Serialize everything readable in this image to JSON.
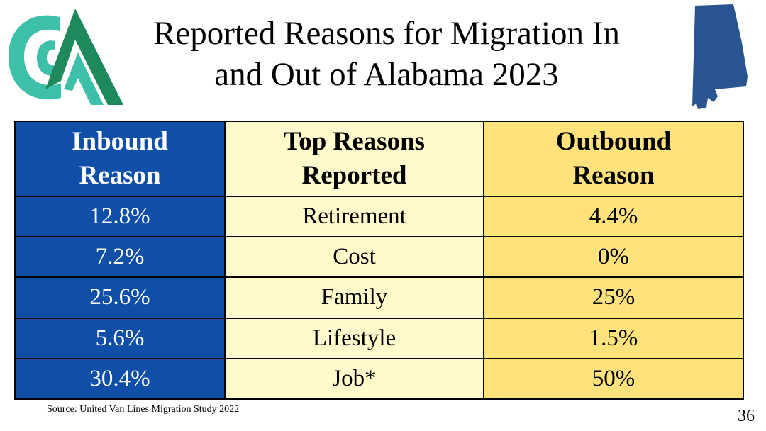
{
  "slide": {
    "title_line1": "Reported Reasons for Migration In",
    "title_line2": "and Out of Alabama 2023",
    "page_number": "36"
  },
  "table": {
    "headers": {
      "inbound_line1": "Inbound",
      "inbound_line2": "Reason",
      "reasons_line1": "Top Reasons",
      "reasons_line2": "Reported",
      "outbound_line1": "Outbound",
      "outbound_line2": "Reason"
    },
    "rows": [
      {
        "inbound": "12.8%",
        "reason": "Retirement",
        "outbound": "4.4%"
      },
      {
        "inbound": "7.2%",
        "reason": "Cost",
        "outbound": "0%"
      },
      {
        "inbound": "25.6%",
        "reason": "Family",
        "outbound": "25%"
      },
      {
        "inbound": "5.6%",
        "reason": "Lifestyle",
        "outbound": "1.5%"
      },
      {
        "inbound": "30.4%",
        "reason": "Job*",
        "outbound": "50%"
      }
    ]
  },
  "source": {
    "prefix": "Source: ",
    "link_text": "United Van Lines Migration Study 2022"
  },
  "colors": {
    "inbound_bg": "#0f4fa8",
    "middle_bg": "#fffbcd",
    "outbound_bg": "#ffe27c",
    "logo_teal": "#3dbfa8",
    "logo_green": "#1e8a5c",
    "map_blue": "#2a5490"
  },
  "icons": {
    "logo": "organization-logo-icon",
    "map": "alabama-state-map-icon"
  }
}
